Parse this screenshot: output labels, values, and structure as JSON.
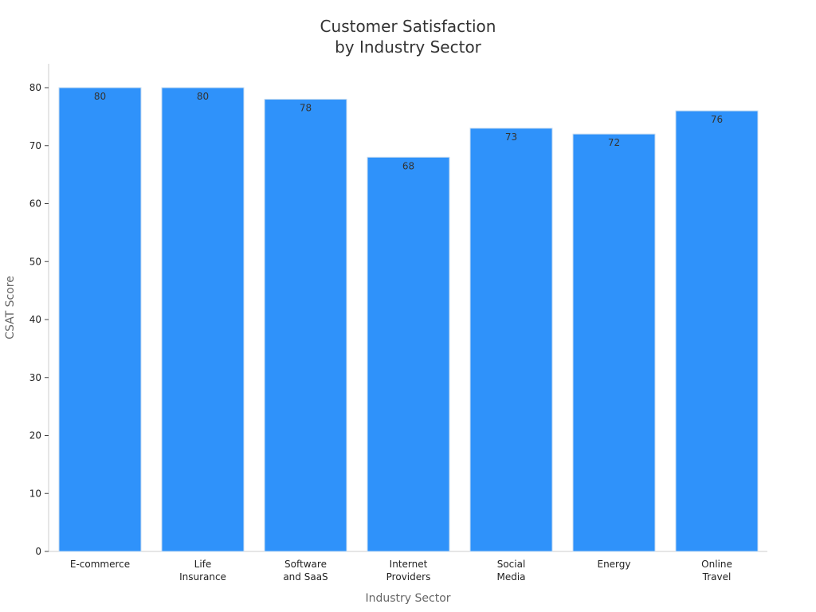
{
  "chart_data": {
    "type": "bar",
    "title": [
      "Customer Satisfaction",
      "by Industry Sector"
    ],
    "xlabel": "Industry Sector",
    "ylabel": "CSAT Score",
    "ylim": [
      0,
      85
    ],
    "yticks": [
      0,
      10,
      20,
      30,
      40,
      50,
      60,
      70,
      80
    ],
    "grid": false,
    "categories": [
      [
        "E-commerce"
      ],
      [
        "Life",
        "Insurance"
      ],
      [
        "Software",
        "and SaaS"
      ],
      [
        "Internet",
        "Providers"
      ],
      [
        "Social",
        "Media"
      ],
      [
        "Energy"
      ],
      [
        "Online",
        "Travel"
      ]
    ],
    "values": [
      80,
      80,
      78,
      68,
      73,
      72,
      76
    ],
    "colors": {
      "bar": "#2f92fa",
      "bar_edge": "#c8dcf0",
      "axis": "#cccccc"
    }
  }
}
